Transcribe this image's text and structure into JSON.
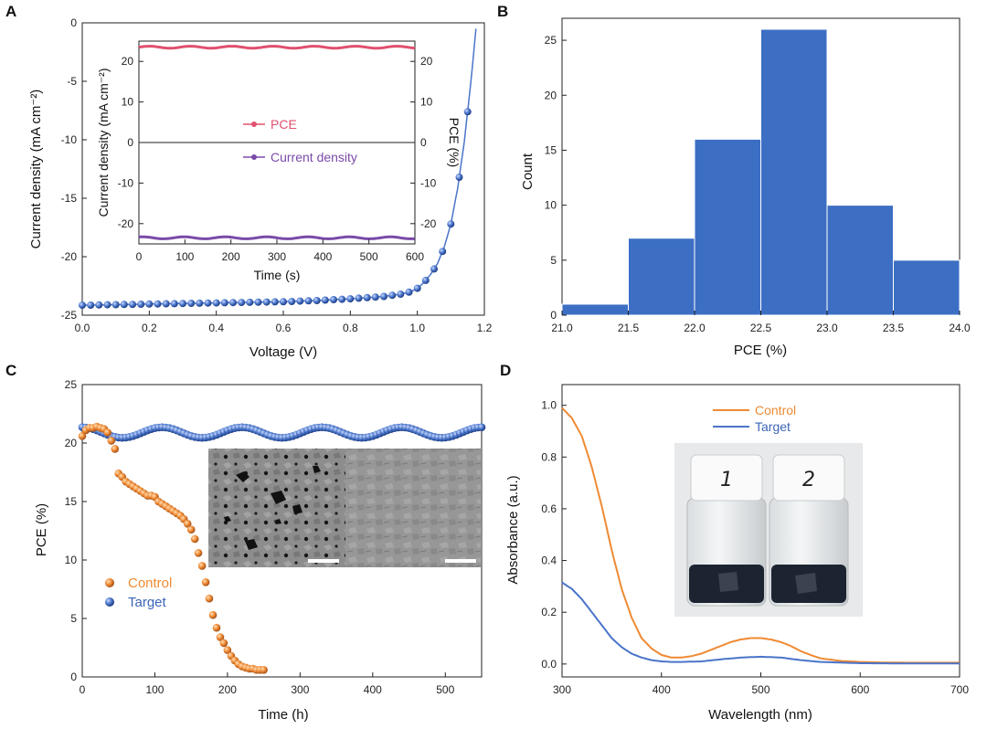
{
  "panels": [
    {
      "label": "A"
    },
    {
      "label": "B"
    },
    {
      "label": "C"
    },
    {
      "label": "D"
    }
  ],
  "chart_data": [
    {
      "panel": "A",
      "type": "scatter",
      "xlabel": "Voltage (V)",
      "ylabel": "Current density (mA cm⁻²)",
      "xlim": [
        0.0,
        1.2
      ],
      "ylim": [
        -25,
        0
      ],
      "xticks": [
        "0.0",
        "0.2",
        "0.4",
        "0.6",
        "0.8",
        "1.0",
        "1.2"
      ],
      "yticks": [
        "0",
        "-5",
        "-10",
        "-15",
        "-20",
        "-25"
      ],
      "series": [
        {
          "color": "#4a74c9",
          "x": [
            0.0,
            0.1,
            0.2,
            0.3,
            0.4,
            0.5,
            0.6,
            0.7,
            0.8,
            0.85,
            0.9,
            0.95,
            0.98,
            1.0,
            1.02,
            1.04,
            1.06,
            1.08,
            1.1,
            1.12,
            1.14,
            1.16,
            1.18
          ],
          "y": [
            -24.15,
            -24.1,
            -24.05,
            -24.0,
            -23.95,
            -23.9,
            -23.85,
            -23.75,
            -23.6,
            -23.5,
            -23.4,
            -23.2,
            -23.0,
            -22.7,
            -22.2,
            -21.5,
            -20.6,
            -19.2,
            -17.2,
            -14.2,
            -10.2,
            -5.0,
            1.0
          ],
          "marker_step": 0.01
        }
      ],
      "inset": {
        "type": "line",
        "xlabel": "Time (s)",
        "ylabel": "Current density (mA cm⁻²)",
        "y2label": "PCE (%)",
        "xlim": [
          0,
          600
        ],
        "ylim": [
          -25,
          25
        ],
        "xticks": [
          "0",
          "100",
          "200",
          "300",
          "400",
          "500",
          "600"
        ],
        "yticks": [
          "20",
          "10",
          "0",
          "-10",
          "-20"
        ],
        "series": [
          {
            "name": "PCE",
            "color": "#e0506e",
            "y": 23.5
          },
          {
            "name": "Current density",
            "color": "#7a4aa8",
            "y": -23.5
          }
        ]
      }
    },
    {
      "panel": "B",
      "type": "bar",
      "xlabel": "PCE (%)",
      "ylabel": "Count",
      "xlim": [
        21.0,
        24.0
      ],
      "ylim": [
        0,
        27
      ],
      "xticks": [
        "21.0",
        "21.5",
        "22.0",
        "22.5",
        "23.0",
        "23.5",
        "24.0"
      ],
      "yticks": [
        "0",
        "5",
        "10",
        "15",
        "20",
        "25"
      ],
      "bins": [
        [
          21.0,
          21.5
        ],
        [
          21.5,
          22.0
        ],
        [
          22.0,
          22.5
        ],
        [
          22.5,
          23.0
        ],
        [
          23.0,
          23.5
        ],
        [
          23.5,
          24.0
        ]
      ],
      "values": [
        1,
        7,
        16,
        26,
        10,
        5
      ],
      "color": "#3c6fc4"
    },
    {
      "panel": "C",
      "type": "scatter",
      "xlabel": "Time (h)",
      "ylabel": "PCE (%)",
      "xlim": [
        0,
        550
      ],
      "ylim": [
        0,
        25
      ],
      "xticks": [
        "0",
        "100",
        "200",
        "300",
        "400",
        "500"
      ],
      "yticks": [
        "0",
        "5",
        "10",
        "15",
        "20",
        "25"
      ],
      "series": [
        {
          "name": "Control",
          "color": "#ef8a33",
          "x": [
            0,
            5,
            10,
            15,
            20,
            25,
            30,
            35,
            40,
            45,
            50,
            55,
            60,
            65,
            70,
            75,
            80,
            85,
            90,
            95,
            100,
            105,
            110,
            115,
            120,
            125,
            130,
            135,
            140,
            145,
            150,
            155,
            160,
            165,
            170,
            175,
            180,
            185,
            190,
            195,
            200,
            205,
            210,
            215,
            220,
            225,
            230,
            235,
            240,
            245,
            250
          ],
          "y": [
            20.6,
            21.1,
            21.3,
            21.3,
            21.4,
            21.3,
            21.2,
            20.9,
            20.2,
            19.5,
            17.4,
            17.1,
            16.7,
            16.5,
            16.3,
            16.1,
            15.9,
            15.7,
            15.5,
            15.5,
            15.4,
            15.0,
            14.8,
            14.6,
            14.4,
            14.2,
            14.0,
            13.8,
            13.5,
            13.1,
            12.6,
            11.8,
            10.6,
            9.5,
            8.1,
            6.7,
            5.3,
            4.2,
            3.4,
            2.9,
            2.3,
            1.8,
            1.4,
            1.1,
            0.9,
            0.8,
            0.7,
            0.7,
            0.6,
            0.6,
            0.6
          ]
        },
        {
          "name": "Target",
          "color": "#4a74c9",
          "x_start": 0,
          "x_end": 550,
          "x_step": 5,
          "y_mean": 20.9,
          "y_wave_amplitude": 0.45,
          "y_wave_period_h": 110
        }
      ]
    },
    {
      "panel": "D",
      "type": "line",
      "xlabel": "Wavelength (nm)",
      "ylabel": "Absorbance (a.u.)",
      "xlim": [
        300,
        700
      ],
      "ylim": [
        -0.05,
        1.08
      ],
      "xticks": [
        "300",
        "400",
        "500",
        "600",
        "700"
      ],
      "yticks": [
        "0.0",
        "0.2",
        "0.4",
        "0.6",
        "0.8",
        "1.0"
      ],
      "series": [
        {
          "name": "Control",
          "color": "#ef8a33",
          "x": [
            300,
            310,
            320,
            330,
            340,
            350,
            360,
            370,
            380,
            390,
            400,
            410,
            420,
            430,
            440,
            450,
            460,
            470,
            480,
            490,
            500,
            510,
            520,
            530,
            540,
            550,
            560,
            580,
            600,
            620,
            650,
            700
          ],
          "y": [
            0.99,
            0.95,
            0.88,
            0.76,
            0.61,
            0.44,
            0.29,
            0.18,
            0.1,
            0.06,
            0.035,
            0.025,
            0.025,
            0.03,
            0.04,
            0.055,
            0.07,
            0.085,
            0.095,
            0.1,
            0.1,
            0.095,
            0.085,
            0.07,
            0.05,
            0.035,
            0.022,
            0.012,
            0.008,
            0.006,
            0.005,
            0.005
          ]
        },
        {
          "name": "Target",
          "color": "#4a74c9",
          "x": [
            300,
            310,
            320,
            330,
            340,
            350,
            360,
            370,
            380,
            390,
            400,
            410,
            420,
            440,
            460,
            480,
            500,
            520,
            540,
            560,
            600,
            650,
            700
          ],
          "y": [
            0.315,
            0.29,
            0.25,
            0.2,
            0.15,
            0.1,
            0.065,
            0.04,
            0.025,
            0.015,
            0.01,
            0.008,
            0.008,
            0.01,
            0.018,
            0.025,
            0.028,
            0.025,
            0.015,
            0.008,
            0.003,
            0.002,
            0.002
          ]
        }
      ]
    }
  ],
  "photo_C": {
    "description_icon": "sem-micrograph-icon",
    "panes": 2
  },
  "photo_D": {
    "vial_labels": [
      "1",
      "2"
    ]
  }
}
